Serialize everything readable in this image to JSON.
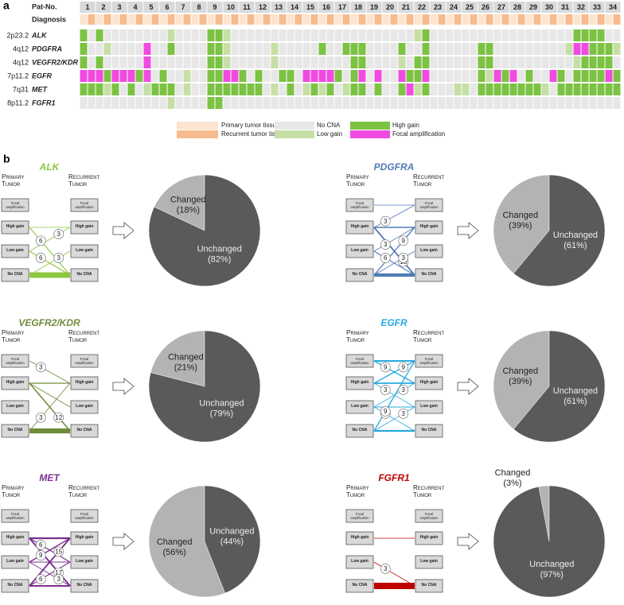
{
  "panel_a": {
    "label": "a",
    "header_label": "Pat-No.",
    "diagnosis_label": "Diagnosis",
    "patients": [
      1,
      2,
      3,
      4,
      5,
      6,
      7,
      8,
      9,
      10,
      11,
      12,
      13,
      14,
      15,
      16,
      17,
      18,
      19,
      20,
      21,
      22,
      23,
      24,
      25,
      26,
      27,
      28,
      29,
      30,
      31,
      32,
      33,
      34
    ],
    "diagnosis_states": [
      {
        "label": "Primary tumor tissue",
        "color": "#fce4d0"
      },
      {
        "label": "Recurrent tumor tissue",
        "color": "#f6bb8e"
      }
    ],
    "states": [
      {
        "label": "No CNA",
        "color": "#e7e7e7"
      },
      {
        "label": "Low gain",
        "color": "#c6dfa6"
      },
      {
        "label": "High gain",
        "color": "#7cc243"
      },
      {
        "label": "Focal amplification",
        "color": "#f04be0"
      }
    ],
    "diagnosis": [
      0,
      1,
      0,
      1,
      0,
      1,
      0,
      1,
      0,
      1,
      0,
      1,
      0,
      1,
      0,
      1,
      0,
      1,
      0,
      1,
      0,
      1,
      0,
      1,
      0,
      1,
      0,
      1,
      0,
      1,
      0,
      1,
      0,
      1,
      0,
      1,
      0,
      1,
      0,
      1,
      0,
      1,
      0,
      1,
      0,
      1,
      0,
      1,
      0,
      1,
      0,
      1,
      0,
      1,
      0,
      1,
      0,
      1,
      0,
      1,
      0,
      1,
      0,
      1,
      0,
      1,
      0,
      1
    ],
    "rows": [
      {
        "locus": "2p23.2",
        "gene": "ALK",
        "cells": [
          2,
          0,
          2,
          0,
          0,
          0,
          0,
          0,
          0,
          0,
          0,
          1,
          0,
          0,
          0,
          0,
          2,
          2,
          1,
          0,
          0,
          0,
          0,
          0,
          0,
          0,
          0,
          0,
          0,
          0,
          0,
          0,
          0,
          0,
          0,
          0,
          0,
          0,
          0,
          0,
          0,
          0,
          1,
          2,
          0,
          0,
          0,
          0,
          0,
          0,
          0,
          0,
          0,
          0,
          0,
          0,
          0,
          0,
          0,
          0,
          0,
          0,
          2,
          2,
          2,
          2,
          0,
          0
        ]
      },
      {
        "locus": "4q12",
        "gene": "PDGFRA",
        "cells": [
          2,
          0,
          0,
          1,
          0,
          0,
          0,
          0,
          3,
          0,
          0,
          2,
          0,
          0,
          0,
          0,
          2,
          2,
          1,
          0,
          0,
          0,
          0,
          0,
          1,
          0,
          0,
          0,
          0,
          0,
          2,
          0,
          0,
          2,
          2,
          2,
          0,
          0,
          0,
          0,
          2,
          0,
          0,
          2,
          0,
          0,
          0,
          0,
          0,
          0,
          2,
          2,
          0,
          0,
          0,
          0,
          0,
          0,
          0,
          0,
          0,
          1,
          3,
          3,
          2,
          2,
          2,
          1
        ]
      },
      {
        "locus": "4q12",
        "gene": "VEGFR2/KDR",
        "cells": [
          2,
          0,
          2,
          0,
          0,
          0,
          0,
          0,
          3,
          0,
          0,
          0,
          0,
          0,
          0,
          0,
          2,
          2,
          1,
          0,
          0,
          0,
          0,
          0,
          1,
          0,
          0,
          0,
          0,
          0,
          0,
          0,
          0,
          0,
          2,
          2,
          0,
          0,
          0,
          0,
          1,
          0,
          2,
          2,
          0,
          0,
          0,
          0,
          0,
          0,
          2,
          2,
          0,
          0,
          0,
          0,
          0,
          0,
          0,
          0,
          0,
          0,
          1,
          2,
          2,
          2,
          2,
          0
        ]
      },
      {
        "locus": "7p11.2",
        "gene": "EGFR",
        "cells": [
          3,
          3,
          3,
          2,
          3,
          3,
          3,
          2,
          3,
          0,
          2,
          0,
          0,
          1,
          0,
          0,
          2,
          2,
          3,
          3,
          2,
          0,
          2,
          0,
          0,
          2,
          2,
          0,
          3,
          3,
          3,
          3,
          2,
          0,
          2,
          3,
          0,
          3,
          0,
          0,
          3,
          2,
          2,
          3,
          0,
          0,
          0,
          0,
          0,
          0,
          2,
          1,
          3,
          2,
          3,
          0,
          2,
          0,
          0,
          3,
          2,
          0,
          2,
          2,
          2,
          2,
          3,
          2
        ]
      },
      {
        "locus": "7q31",
        "gene": "MET",
        "cells": [
          2,
          2,
          2,
          1,
          2,
          0,
          2,
          0,
          1,
          2,
          2,
          2,
          0,
          1,
          0,
          0,
          2,
          2,
          2,
          2,
          2,
          2,
          2,
          0,
          1,
          0,
          2,
          0,
          1,
          2,
          1,
          2,
          0,
          1,
          2,
          2,
          0,
          2,
          0,
          0,
          2,
          3,
          1,
          2,
          0,
          0,
          0,
          1,
          1,
          0,
          2,
          2,
          2,
          2,
          2,
          2,
          2,
          2,
          1,
          0,
          2,
          2,
          2,
          2,
          2,
          2,
          2,
          2
        ]
      },
      {
        "locus": "8p11.2",
        "gene": "FGFR1",
        "cells": [
          0,
          0,
          0,
          0,
          0,
          0,
          0,
          0,
          0,
          0,
          0,
          1,
          0,
          0,
          0,
          0,
          2,
          2,
          0,
          0,
          0,
          0,
          0,
          0,
          0,
          0,
          0,
          0,
          0,
          0,
          0,
          0,
          0,
          0,
          0,
          0,
          0,
          0,
          0,
          0,
          0,
          0,
          0,
          0,
          0,
          0,
          0,
          0,
          0,
          0,
          0,
          0,
          0,
          0,
          0,
          0,
          0,
          0,
          0,
          0,
          0,
          0,
          0,
          0,
          0,
          0,
          0,
          0
        ]
      }
    ]
  },
  "panel_b": {
    "label": "b",
    "primary_label": "Primary Tumor",
    "recurrent_label": "Recurrent Tumor",
    "levels": [
      "Focal amplification",
      "High gain",
      "Low gain",
      "No CNA"
    ],
    "pie_labels": [
      "Changed",
      "Unchanged"
    ],
    "pie_colors": [
      "#b3b3b3",
      "#5a5a5a"
    ],
    "genes": [
      {
        "gene": "ALK",
        "color": "#8dc63f",
        "transitions": [
          {
            "from": 1,
            "to": 3,
            "percent": 6,
            "labeled": true
          },
          {
            "from": 2,
            "to": 1,
            "percent": 3,
            "labeled": true
          },
          {
            "from": 2,
            "to": 3,
            "percent": 6,
            "labeled": true
          },
          {
            "from": 3,
            "to": 2,
            "percent": 3,
            "labeled": true
          },
          {
            "from": 1,
            "to": 1,
            "percent": 3,
            "labeled": false
          },
          {
            "from": 3,
            "to": 3,
            "percent": 79,
            "labeled": false
          }
        ],
        "pie": {
          "values": [
            18,
            82
          ],
          "value_labels": [
            "(18%)",
            "(82%)"
          ]
        }
      },
      {
        "gene": "PDGFRA",
        "color": "#4f7cb6",
        "transitions": [
          {
            "from": 1,
            "to": 0,
            "percent": 3,
            "labeled": true
          },
          {
            "from": 1,
            "to": 3,
            "percent": 15,
            "labeled": true
          },
          {
            "from": 2,
            "to": 1,
            "percent": 3,
            "labeled": true
          },
          {
            "from": 3,
            "to": 1,
            "percent": 9,
            "labeled": true
          },
          {
            "from": 2,
            "to": 3,
            "percent": 6,
            "labeled": true
          },
          {
            "from": 3,
            "to": 2,
            "percent": 3,
            "labeled": true
          },
          {
            "from": 0,
            "to": 0,
            "percent": 3,
            "labeled": false
          },
          {
            "from": 1,
            "to": 1,
            "percent": 12,
            "labeled": false
          },
          {
            "from": 3,
            "to": 3,
            "percent": 46,
            "labeled": false
          }
        ],
        "pie": {
          "values": [
            39,
            61
          ],
          "value_labels": [
            "(39%)",
            "(61%)"
          ]
        }
      },
      {
        "gene": "VEGFR2/KDR",
        "color": "#6f8c3a",
        "transitions": [
          {
            "from": 0,
            "to": 1,
            "percent": 3,
            "labeled": true
          },
          {
            "from": 1,
            "to": 3,
            "percent": 12,
            "labeled": true
          },
          {
            "from": 3,
            "to": 1,
            "percent": 3,
            "labeled": true
          },
          {
            "from": 1,
            "to": 2,
            "percent": 3,
            "labeled": false
          },
          {
            "from": 1,
            "to": 1,
            "percent": 9,
            "labeled": false
          },
          {
            "from": 3,
            "to": 3,
            "percent": 70,
            "labeled": false
          }
        ],
        "pie": {
          "values": [
            21,
            79
          ],
          "value_labels": [
            "(21%)",
            "(79%)"
          ]
        }
      },
      {
        "gene": "EGFR",
        "color": "#29a9df",
        "transitions": [
          {
            "from": 0,
            "to": 1,
            "percent": 9,
            "labeled": true
          },
          {
            "from": 1,
            "to": 0,
            "percent": 9,
            "labeled": true
          },
          {
            "from": 1,
            "to": 2,
            "percent": 3,
            "labeled": true
          },
          {
            "from": 2,
            "to": 1,
            "percent": 3,
            "labeled": true
          },
          {
            "from": 2,
            "to": 3,
            "percent": 3,
            "labeled": true
          },
          {
            "from": 3,
            "to": 2,
            "percent": 3,
            "labeled": true
          },
          {
            "from": 3,
            "to": 0,
            "percent": 9,
            "labeled": true
          },
          {
            "from": 0,
            "to": 0,
            "percent": 18,
            "labeled": false
          },
          {
            "from": 1,
            "to": 1,
            "percent": 15,
            "labeled": false
          },
          {
            "from": 2,
            "to": 2,
            "percent": 6,
            "labeled": false
          },
          {
            "from": 3,
            "to": 3,
            "percent": 22,
            "labeled": false
          }
        ],
        "pie": {
          "values": [
            39,
            61
          ],
          "value_labels": [
            "(39%)",
            "(61%)"
          ]
        }
      },
      {
        "gene": "MET",
        "color": "#7b2f8f",
        "transitions": [
          {
            "from": 1,
            "to": 2,
            "percent": 6,
            "labeled": true
          },
          {
            "from": 1,
            "to": 3,
            "percent": 17,
            "labeled": true
          },
          {
            "from": 2,
            "to": 1,
            "percent": 9,
            "labeled": true
          },
          {
            "from": 2,
            "to": 3,
            "percent": 3,
            "labeled": true
          },
          {
            "from": 3,
            "to": 2,
            "percent": 6,
            "labeled": true
          },
          {
            "from": 3,
            "to": 1,
            "percent": 15,
            "labeled": true
          },
          {
            "from": 1,
            "to": 1,
            "percent": 20,
            "labeled": false
          },
          {
            "from": 2,
            "to": 2,
            "percent": 6,
            "labeled": false
          },
          {
            "from": 3,
            "to": 3,
            "percent": 18,
            "labeled": false
          }
        ],
        "pie": {
          "values": [
            56,
            44
          ],
          "value_labels": [
            "(56%)",
            "(44%)"
          ]
        }
      },
      {
        "gene": "FGFR1",
        "color": "#c00000",
        "transitions": [
          {
            "from": 2,
            "to": 3,
            "percent": 3,
            "labeled": true
          },
          {
            "from": 1,
            "to": 1,
            "percent": 3,
            "labeled": false
          },
          {
            "from": 3,
            "to": 3,
            "percent": 94,
            "labeled": false
          }
        ],
        "pie": {
          "values": [
            3,
            97
          ],
          "value_labels": [
            "(3%)",
            "(97%)"
          ]
        }
      }
    ]
  }
}
